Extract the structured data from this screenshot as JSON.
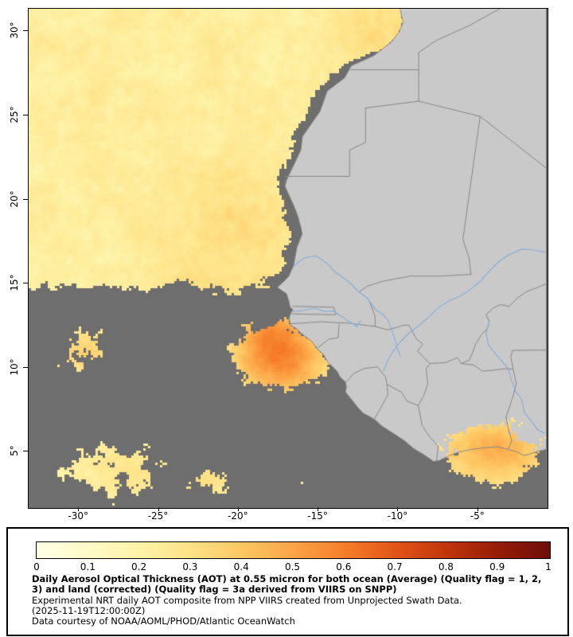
{
  "map": {
    "extent": {
      "lon_min": -33.1,
      "lon_max": -0.7,
      "lat_min": 1.7,
      "lat_max": 31.3
    },
    "x_ticks": [
      {
        "label": "-30°",
        "lon": -30
      },
      {
        "label": "-25°",
        "lon": -25
      },
      {
        "label": "-20°",
        "lon": -20
      },
      {
        "label": "-15°",
        "lon": -15
      },
      {
        "label": "-10°",
        "lon": -10
      },
      {
        "label": "-5°",
        "lon": -5
      }
    ],
    "y_ticks": [
      {
        "label": "30°",
        "lat": 30
      },
      {
        "label": "25°",
        "lat": 25
      },
      {
        "label": "20°",
        "lat": 20
      },
      {
        "label": "15°",
        "lat": 15
      },
      {
        "label": "10°",
        "lat": 10
      },
      {
        "label": "5°",
        "lat": 5
      }
    ],
    "colors": {
      "ocean_nodata": "#6e6e6e",
      "land": "#c9c9c9",
      "country_border": "#878787",
      "river": "#8ab0d8",
      "frame": "#000000",
      "tick": "#000000"
    },
    "geo": {
      "coast": [
        [
          -9.85,
          31.35
        ],
        [
          -9.65,
          30.5
        ],
        [
          -9.9,
          29.9
        ],
        [
          -10.4,
          29.3
        ],
        [
          -11.5,
          28.5
        ],
        [
          -12.9,
          27.9
        ],
        [
          -13.3,
          27.2
        ],
        [
          -14.4,
          26.4
        ],
        [
          -14.85,
          25.2
        ],
        [
          -15.95,
          23.7
        ],
        [
          -16.05,
          22.9
        ],
        [
          -16.4,
          22.2
        ],
        [
          -16.95,
          21.1
        ],
        [
          -17.05,
          20.75
        ],
        [
          -16.5,
          19.6
        ],
        [
          -16.25,
          19.0
        ],
        [
          -16.05,
          18.3
        ],
        [
          -15.97,
          17.9
        ],
        [
          -16.3,
          17.1
        ],
        [
          -16.5,
          16.05
        ],
        [
          -16.8,
          15.4
        ],
        [
          -17.2,
          15.0
        ],
        [
          -17.45,
          14.8
        ],
        [
          -17.52,
          14.72
        ],
        [
          -17.25,
          14.55
        ],
        [
          -16.95,
          14.35
        ],
        [
          -16.8,
          13.9
        ],
        [
          -16.72,
          13.55
        ],
        [
          -16.55,
          13.4
        ],
        [
          -16.7,
          13.15
        ],
        [
          -16.78,
          12.9
        ],
        [
          -16.7,
          12.45
        ],
        [
          -16.35,
          12.3
        ],
        [
          -16.1,
          12.05
        ],
        [
          -15.7,
          11.75
        ],
        [
          -15.35,
          11.5
        ],
        [
          -15.0,
          11.05
        ],
        [
          -14.65,
          10.75
        ],
        [
          -14.35,
          10.25
        ],
        [
          -14.05,
          10.0
        ],
        [
          -13.75,
          9.7
        ],
        [
          -13.6,
          9.4
        ],
        [
          -13.25,
          9.1
        ],
        [
          -13.2,
          8.8
        ],
        [
          -13.25,
          8.5
        ],
        [
          -13.0,
          8.2
        ],
        [
          -12.7,
          7.85
        ],
        [
          -12.45,
          7.55
        ],
        [
          -12.15,
          7.25
        ],
        [
          -11.75,
          7.05
        ],
        [
          -11.4,
          6.85
        ],
        [
          -11.0,
          6.5
        ],
        [
          -10.6,
          6.25
        ],
        [
          -10.1,
          5.95
        ],
        [
          -9.55,
          5.6
        ],
        [
          -9.0,
          5.15
        ],
        [
          -8.3,
          4.75
        ],
        [
          -7.75,
          4.38
        ],
        [
          -7.4,
          4.42
        ],
        [
          -6.8,
          4.7
        ],
        [
          -6.1,
          4.95
        ],
        [
          -5.3,
          5.1
        ],
        [
          -4.45,
          5.2
        ],
        [
          -3.75,
          5.25
        ],
        [
          -3.1,
          5.1
        ],
        [
          -2.55,
          4.95
        ],
        [
          -2.05,
          4.72
        ],
        [
          -1.6,
          4.85
        ],
        [
          -1.1,
          5.0
        ],
        [
          -0.65,
          5.1
        ]
      ],
      "borders": [
        [
          [
            -12.95,
            27.67
          ],
          [
            -8.67,
            27.67
          ]
        ],
        [
          [
            -8.67,
            27.67
          ],
          [
            -8.67,
            25.8
          ]
        ],
        [
          [
            -8.67,
            25.8
          ],
          [
            -4.82,
            24.9
          ],
          [
            -0.65,
            21.8
          ]
        ],
        [
          [
            -4.82,
            24.9
          ],
          [
            -5.9,
            17.6
          ],
          [
            -5.5,
            16.4
          ],
          [
            -5.4,
            15.5
          ]
        ],
        [
          [
            -5.4,
            15.5
          ],
          [
            -7.3,
            15.4
          ],
          [
            -9.2,
            15.4
          ],
          [
            -10.9,
            15.1
          ],
          [
            -11.9,
            14.8
          ],
          [
            -12.4,
            14.45
          ]
        ],
        [
          [
            -17.05,
            21.33
          ],
          [
            -13.0,
            21.33
          ],
          [
            -13.0,
            22.9
          ],
          [
            -12.0,
            23.35
          ],
          [
            -12.0,
            25.4
          ],
          [
            -8.67,
            25.8
          ]
        ],
        [
          [
            -11.75,
            13.9
          ],
          [
            -11.4,
            13.0
          ],
          [
            -11.4,
            12.4
          ]
        ],
        [
          [
            -16.7,
            12.56
          ],
          [
            -14.8,
            12.68
          ],
          [
            -13.05,
            12.6
          ],
          [
            -11.4,
            12.4
          ]
        ],
        [
          [
            -16.6,
            13.6
          ],
          [
            -14.0,
            13.55
          ],
          [
            -13.85,
            13.1
          ],
          [
            -16.62,
            13.15
          ]
        ],
        [
          [
            -15.05,
            11.1
          ],
          [
            -14.3,
            11.65
          ],
          [
            -13.72,
            11.72
          ],
          [
            -13.65,
            12.56
          ]
        ],
        [
          [
            -11.4,
            12.4
          ],
          [
            -10.6,
            12.2
          ],
          [
            -9.7,
            12.45
          ],
          [
            -9.3,
            12.5
          ],
          [
            -8.8,
            11.65
          ],
          [
            -8.4,
            11.35
          ],
          [
            -8.75,
            10.95
          ]
        ],
        [
          [
            -13.25,
            9.05
          ],
          [
            -12.75,
            9.6
          ],
          [
            -12.1,
            9.9
          ],
          [
            -11.25,
            10.0
          ],
          [
            -10.75,
            9.4
          ],
          [
            -10.65,
            8.95
          ]
        ],
        [
          [
            -10.65,
            8.95
          ],
          [
            -10.6,
            8.35
          ],
          [
            -11.05,
            7.55
          ],
          [
            -11.45,
            6.9
          ]
        ],
        [
          [
            -10.65,
            8.95
          ],
          [
            -9.75,
            8.5
          ],
          [
            -9.4,
            7.95
          ],
          [
            -8.7,
            7.7
          ]
        ],
        [
          [
            -8.75,
            10.95
          ],
          [
            -8.3,
            10.5
          ],
          [
            -7.95,
            10.2
          ],
          [
            -7.0,
            10.25
          ],
          [
            -6.25,
            10.55
          ],
          [
            -6.0,
            10.2
          ]
        ],
        [
          [
            -8.7,
            7.7
          ],
          [
            -8.35,
            8.3
          ],
          [
            -8.1,
            9.0
          ],
          [
            -8.2,
            9.9
          ],
          [
            -7.95,
            10.2
          ]
        ],
        [
          [
            -8.7,
            7.7
          ],
          [
            -8.45,
            6.5
          ],
          [
            -7.95,
            5.8
          ],
          [
            -7.45,
            5.3
          ],
          [
            -7.55,
            4.4
          ]
        ],
        [
          [
            -6.0,
            10.2
          ],
          [
            -5.2,
            10.1
          ],
          [
            -4.7,
            9.75
          ],
          [
            -4.0,
            9.8
          ],
          [
            -3.2,
            9.9
          ],
          [
            -2.75,
            9.85
          ]
        ],
        [
          [
            -6.0,
            10.2
          ],
          [
            -5.5,
            10.4
          ],
          [
            -5.3,
            10.85
          ],
          [
            -5.1,
            11.35
          ],
          [
            -4.75,
            11.9
          ],
          [
            -4.35,
            12.3
          ],
          [
            -4.25,
            12.7
          ],
          [
            -4.45,
            13.1
          ],
          [
            -4.0,
            13.5
          ],
          [
            -3.55,
            13.7
          ],
          [
            -3.0,
            13.6
          ],
          [
            -2.5,
            14.1
          ],
          [
            -1.95,
            14.45
          ],
          [
            -0.65,
            14.95
          ]
        ],
        [
          [
            -2.75,
            9.85
          ],
          [
            -2.55,
            9.0
          ],
          [
            -2.75,
            8.3
          ],
          [
            -3.2,
            7.0
          ],
          [
            -3.05,
            6.3
          ],
          [
            -2.85,
            5.6
          ],
          [
            -3.05,
            5.1
          ]
        ],
        [
          [
            -2.75,
            9.85
          ],
          [
            -2.9,
            10.6
          ],
          [
            -2.8,
            10.98
          ],
          [
            -1.6,
            10.99
          ],
          [
            -0.65,
            11.0
          ]
        ],
        [
          [
            -3.5,
            31.35
          ],
          [
            -5.5,
            30.3
          ],
          [
            -7.6,
            29.4
          ],
          [
            -8.67,
            28.7
          ],
          [
            -8.67,
            27.67
          ]
        ]
      ],
      "rivers": [
        [
          [
            -16.5,
            16.0
          ],
          [
            -15.8,
            16.5
          ],
          [
            -15.1,
            16.6
          ],
          [
            -14.4,
            16.15
          ],
          [
            -13.85,
            15.6
          ],
          [
            -13.1,
            15.1
          ],
          [
            -12.4,
            14.45
          ],
          [
            -11.9,
            14.1
          ],
          [
            -11.75,
            13.9
          ],
          [
            -11.35,
            13.4
          ],
          [
            -10.9,
            13.1
          ],
          [
            -10.6,
            12.8
          ]
        ],
        [
          [
            -16.55,
            13.3
          ],
          [
            -15.9,
            13.35
          ],
          [
            -15.2,
            13.5
          ],
          [
            -14.6,
            13.3
          ],
          [
            -14.0,
            13.32
          ],
          [
            -13.5,
            13.0
          ],
          [
            -13.1,
            12.75
          ],
          [
            -12.55,
            12.4
          ],
          [
            -12.3,
            12.75
          ]
        ],
        [
          [
            -10.9,
            9.7
          ],
          [
            -10.55,
            10.5
          ],
          [
            -10.0,
            11.3
          ],
          [
            -9.3,
            12.0
          ],
          [
            -8.6,
            12.5
          ],
          [
            -8.0,
            13.0
          ],
          [
            -7.4,
            13.55
          ],
          [
            -6.7,
            13.95
          ],
          [
            -6.1,
            14.2
          ],
          [
            -5.5,
            14.55
          ],
          [
            -4.8,
            15.1
          ],
          [
            -4.2,
            15.75
          ],
          [
            -3.6,
            16.3
          ],
          [
            -2.95,
            16.7
          ],
          [
            -2.2,
            17.0
          ],
          [
            -1.5,
            16.95
          ],
          [
            -0.65,
            16.8
          ]
        ],
        [
          [
            -4.25,
            12.7
          ],
          [
            -4.45,
            12.0
          ],
          [
            -4.3,
            11.3
          ],
          [
            -3.8,
            10.7
          ],
          [
            -3.1,
            9.95
          ],
          [
            -2.85,
            9.2
          ],
          [
            -2.6,
            8.55
          ],
          [
            -2.2,
            8.05
          ],
          [
            -2.05,
            7.3
          ],
          [
            -1.6,
            6.75
          ],
          [
            -1.2,
            6.25
          ],
          [
            -0.8,
            6.05
          ]
        ],
        [
          [
            -10.6,
            12.8
          ],
          [
            -10.25,
            11.9
          ],
          [
            -10.0,
            11.1
          ],
          [
            -9.8,
            10.6
          ]
        ]
      ]
    },
    "aot_field": {
      "cell": 3,
      "base_band": {
        "lat_lo": 13.2,
        "lat_hi": 15.8,
        "cov": 0.97
      },
      "coast_gap": {
        "lat_min": 14.8,
        "lat_max": 28.8,
        "width": 1.3,
        "floor": 0.3
      },
      "cov_blobs": [
        {
          "lon": -17.3,
          "slon": 2.6,
          "lat": 10.6,
          "slat": 1.9,
          "w": 1.1
        },
        {
          "lon": -29.8,
          "slon": 2.4,
          "lat": 11.0,
          "slat": 1.8,
          "w": 0.62
        },
        {
          "lon": -28.3,
          "slon": 3.6,
          "lat": 4.0,
          "slat": 2.0,
          "w": 0.72
        },
        {
          "lon": -21.8,
          "slon": 2.6,
          "lat": 3.1,
          "slat": 1.5,
          "w": 0.66
        },
        {
          "lon": -16.5,
          "slon": 3.4,
          "lat": 3.4,
          "slat": 1.4,
          "w": 0.45
        },
        {
          "lon": -4.2,
          "slon": 3.0,
          "lat": 5.0,
          "slat": 1.7,
          "w": 1.0
        },
        {
          "lon": -17.7,
          "slon": 0.9,
          "lat": 12.9,
          "slat": 1.6,
          "w": 0.55
        }
      ],
      "val_base": 0.14,
      "val_blobs": [
        {
          "lon": -17.3,
          "slon": 2.2,
          "lat": 10.4,
          "slat": 1.6,
          "w": 0.3
        },
        {
          "lon": -17.8,
          "slon": 1.2,
          "lat": 12.3,
          "slat": 1.4,
          "w": 0.16
        },
        {
          "lon": -3.8,
          "slon": 2.6,
          "lat": 4.9,
          "slat": 1.5,
          "w": 0.22
        },
        {
          "lon": -22.0,
          "slon": 2.5,
          "lat": 13.5,
          "slat": 1.5,
          "w": 0.1
        },
        {
          "lon": -29.5,
          "slon": 1.8,
          "lat": 10.8,
          "slat": 1.2,
          "w": 0.14
        },
        {
          "lon": -24.0,
          "slon": 3.0,
          "lat": 3.6,
          "slat": 1.6,
          "w": 0.1
        },
        {
          "lon": -11.5,
          "slon": 2.0,
          "lat": 30.0,
          "slat": 1.5,
          "w": 0.1
        },
        {
          "lon": -20.5,
          "slon": 3.5,
          "lat": 18.5,
          "slat": 2.5,
          "w": 0.07
        }
      ],
      "land_data_region": {
        "lon_min": -8.3,
        "lat_max": 7.4
      },
      "palette": [
        [
          0,
          "#FFFFE5"
        ],
        [
          0.1,
          "#FFFAC8"
        ],
        [
          0.2,
          "#FEF3A8"
        ],
        [
          0.3,
          "#FEE287"
        ],
        [
          0.4,
          "#FEC763"
        ],
        [
          0.5,
          "#FCA446"
        ],
        [
          0.6,
          "#F67E2A"
        ],
        [
          0.7,
          "#E25417"
        ],
        [
          0.8,
          "#C0350B"
        ],
        [
          0.9,
          "#951C06"
        ],
        [
          1,
          "#6F0D0A"
        ]
      ]
    }
  },
  "legend": {
    "ticks": [
      "0",
      "0.1",
      "0.2",
      "0.3",
      "0.4",
      "0.5",
      "0.6",
      "0.7",
      "0.8",
      "0.9",
      "1"
    ],
    "title_bold": "Daily Aerosol Optical Thickness (AOT) at 0.55 micron for both ocean (Average) (Quality flag = 1, 2, 3) and land (corrected) (Quality flag = 3a derived from VIIRS on SNPP)",
    "line2": "Experimental NRT daily AOT composite from NPP VIIRS created from Unprojected Swath Data.",
    "line3": "(2025-11-19T12:00:00Z)",
    "line4": "Data courtesy of NOAA/AOML/PHOD/Atlantic OceanWatch"
  }
}
